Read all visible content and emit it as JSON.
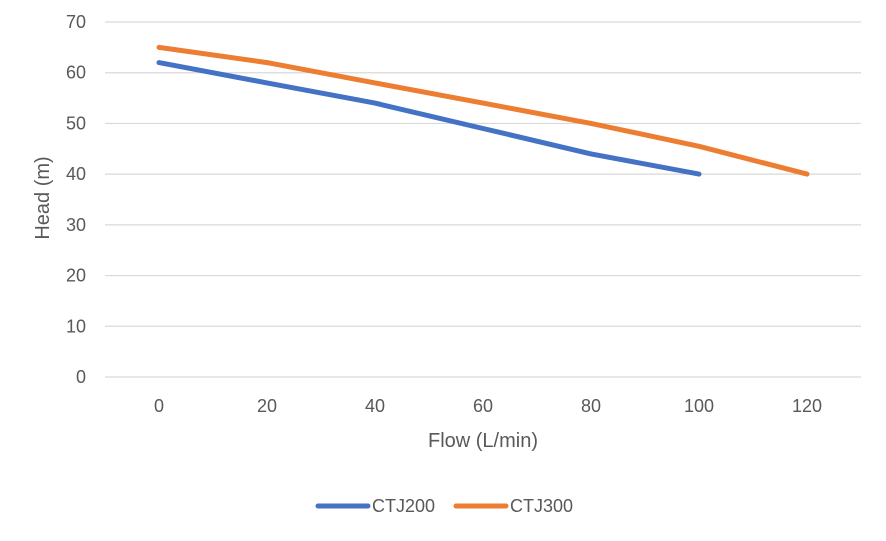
{
  "chart_data": {
    "type": "line",
    "title": "",
    "xlabel": "Flow (L/min)",
    "ylabel": "Head (m)",
    "x": [
      0,
      20,
      40,
      60,
      80,
      100,
      120
    ],
    "xlim": [
      -10,
      130
    ],
    "ylim": [
      0,
      70
    ],
    "x_ticks": [
      0,
      20,
      40,
      60,
      80,
      100,
      120
    ],
    "y_ticks": [
      0,
      10,
      20,
      30,
      40,
      50,
      60,
      70
    ],
    "grid": true,
    "legend_position": "bottom",
    "series": [
      {
        "name": "CTJ200",
        "color": "#4472C4",
        "points": [
          [
            0,
            62
          ],
          [
            20,
            58
          ],
          [
            40,
            54
          ],
          [
            60,
            49
          ],
          [
            80,
            44
          ],
          [
            100,
            40
          ]
        ]
      },
      {
        "name": "CTJ300",
        "color": "#ED7D31",
        "points": [
          [
            0,
            65
          ],
          [
            20,
            62
          ],
          [
            40,
            58
          ],
          [
            60,
            54
          ],
          [
            80,
            50
          ],
          [
            100,
            45.5
          ],
          [
            120,
            40
          ]
        ]
      }
    ]
  }
}
